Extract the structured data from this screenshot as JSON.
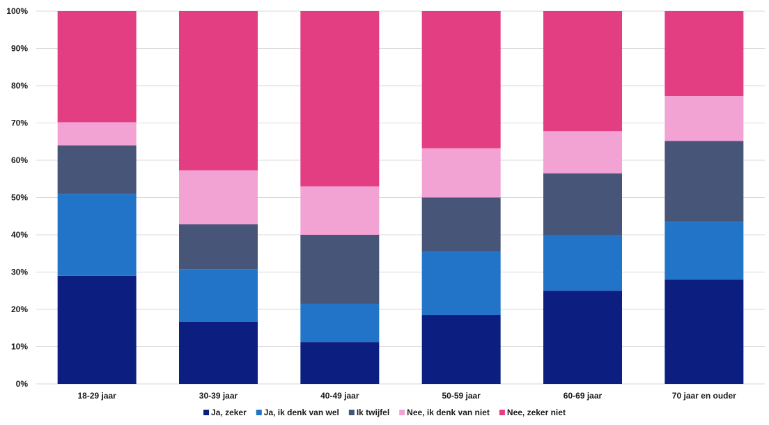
{
  "chart_data": {
    "type": "bar",
    "stacked": true,
    "categories": [
      "18-29 jaar",
      "30-39 jaar",
      "40-49 jaar",
      "50-59 jaar",
      "60-69 jaar",
      "70 jaar en ouder"
    ],
    "series": [
      {
        "name": "Ja, zeker",
        "color": "#0c1f80",
        "values": [
          29,
          16.7,
          11.2,
          18.5,
          25,
          28
        ]
      },
      {
        "name": "Ja, ik denk van wel",
        "color": "#2174c8",
        "values": [
          22,
          14.1,
          10.3,
          17,
          15,
          15.5
        ]
      },
      {
        "name": "Ik twijfel",
        "color": "#465578",
        "values": [
          13,
          12,
          18.5,
          14.5,
          16.5,
          21.7
        ]
      },
      {
        "name": "Nee, ik denk van niet",
        "color": "#f2a3d3",
        "values": [
          6.2,
          14.5,
          13,
          13.2,
          11.3,
          12
        ]
      },
      {
        "name": "Nee, zeker niet",
        "color": "#e33e81",
        "values": [
          29.8,
          42.7,
          47,
          36.8,
          32.2,
          22.8
        ]
      }
    ],
    "yticks": [
      "0%",
      "10%",
      "20%",
      "30%",
      "40%",
      "50%",
      "60%",
      "70%",
      "80%",
      "90%",
      "100%"
    ],
    "ylim": [
      0,
      100
    ],
    "grid": true,
    "legend_position": "bottom",
    "xlabel": "",
    "ylabel": ""
  }
}
